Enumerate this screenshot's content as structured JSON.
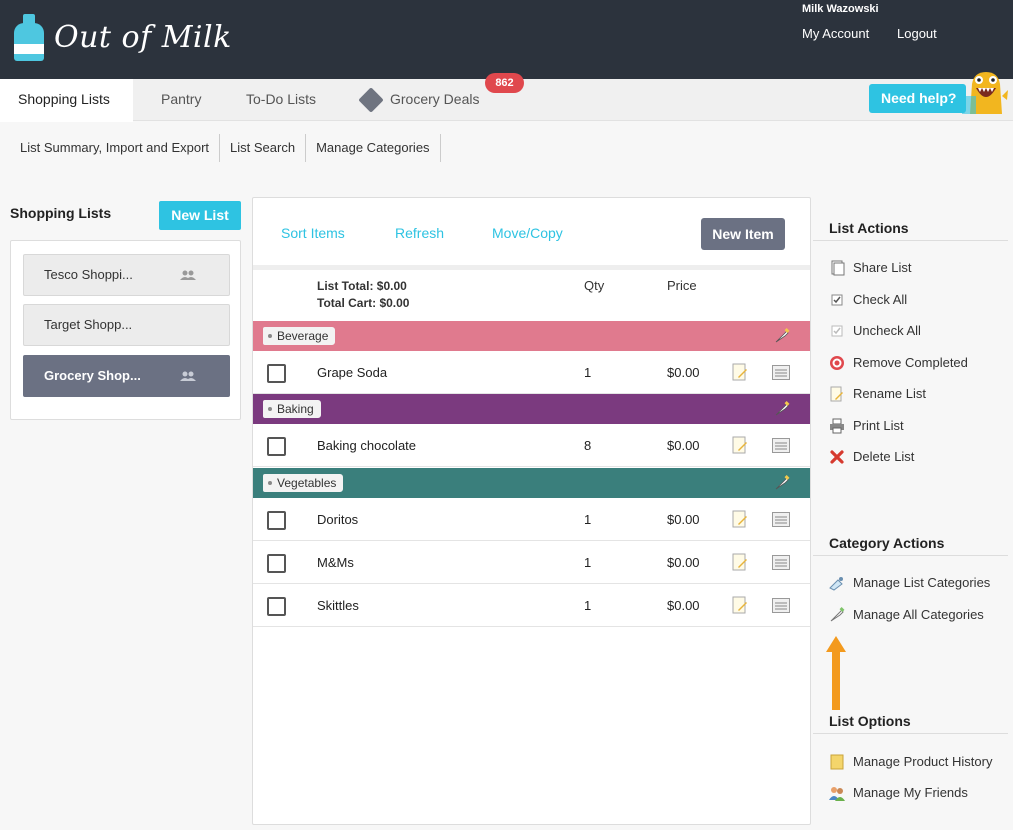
{
  "header": {
    "logo_text": "Out of Milk",
    "user_name": "Milk Wazowski",
    "my_account": "My Account",
    "logout": "Logout",
    "bg_color": "#2c333d"
  },
  "nav": {
    "tabs": [
      {
        "label": "Shopping Lists",
        "active": true
      },
      {
        "label": "Pantry"
      },
      {
        "label": "To-Do Lists"
      },
      {
        "label": "Grocery Deals",
        "icon": "tag-icon"
      }
    ],
    "deals_badge": "862",
    "help_label": "Need help?"
  },
  "subnav": [
    "List Summary, Import and Export",
    "List Search",
    "Manage Categories"
  ],
  "sidebar": {
    "title": "Shopping Lists",
    "new_list_label": "New List",
    "lists": [
      {
        "label": "Tesco Shoppi...",
        "shared": true
      },
      {
        "label": "Target Shopp...",
        "shared": false
      },
      {
        "label": "Grocery Shop...",
        "shared": true,
        "active": true
      }
    ]
  },
  "toolbar": {
    "sort": "Sort Items",
    "refresh": "Refresh",
    "move_copy": "Move/Copy",
    "new_item": "New Item"
  },
  "totals": {
    "list_total": "List Total: $0.00",
    "total_cart": "Total Cart: $0.00",
    "qty_header": "Qty",
    "price_header": "Price"
  },
  "categories": [
    {
      "name": "Beverage",
      "color": "#e07a8e",
      "items": [
        {
          "name": "Grape Soda",
          "qty": "1",
          "price": "$0.00"
        }
      ]
    },
    {
      "name": "Baking",
      "color": "#7b3a7f",
      "items": [
        {
          "name": "Baking chocolate",
          "qty": "8",
          "price": "$0.00"
        }
      ]
    },
    {
      "name": "Vegetables",
      "color": "#3a7f7c",
      "items": [
        {
          "name": "Doritos",
          "qty": "1",
          "price": "$0.00"
        },
        {
          "name": "M&Ms",
          "qty": "1",
          "price": "$0.00"
        },
        {
          "name": "Skittles",
          "qty": "1",
          "price": "$0.00"
        }
      ]
    }
  ],
  "list_actions": {
    "title": "List Actions",
    "items": [
      {
        "label": "Share List",
        "icon": "share-icon"
      },
      {
        "label": "Check All",
        "icon": "check-all-icon"
      },
      {
        "label": "Uncheck All",
        "icon": "uncheck-all-icon"
      },
      {
        "label": "Remove Completed",
        "icon": "remove-completed-icon"
      },
      {
        "label": "Rename List",
        "icon": "rename-icon"
      },
      {
        "label": "Print List",
        "icon": "printer-icon"
      },
      {
        "label": "Delete List",
        "icon": "delete-icon"
      }
    ]
  },
  "category_actions": {
    "title": "Category Actions",
    "items": [
      {
        "label": "Manage List Categories",
        "icon": "list-categories-icon"
      },
      {
        "label": "Manage All Categories",
        "icon": "all-categories-icon"
      }
    ]
  },
  "list_options": {
    "title": "List Options",
    "items": [
      {
        "label": "Manage Product History",
        "icon": "history-icon"
      },
      {
        "label": "Manage My Friends",
        "icon": "friends-icon"
      }
    ]
  }
}
